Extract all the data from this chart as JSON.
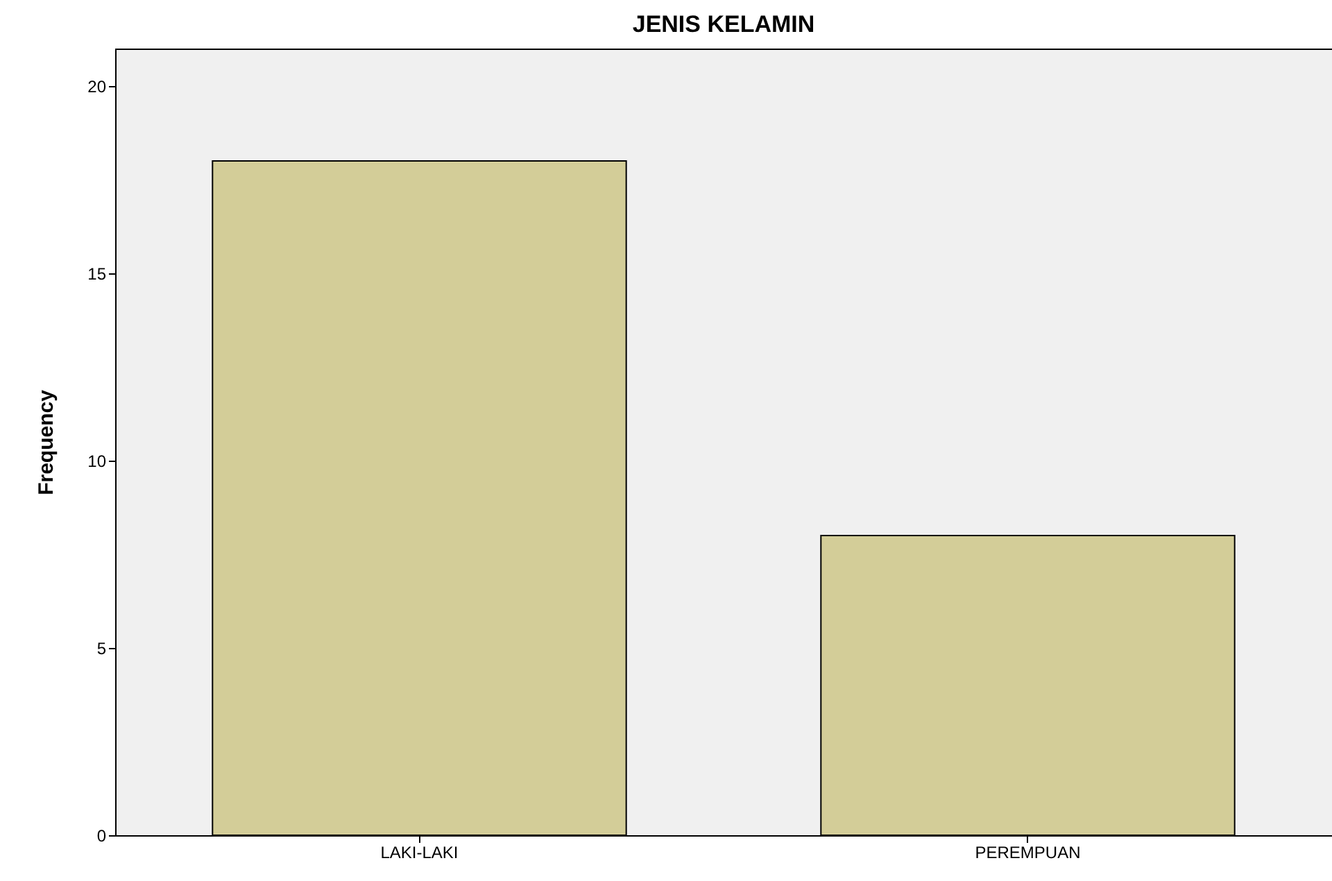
{
  "chart_data": {
    "type": "bar",
    "title": "JENIS KELAMIN",
    "ylabel": "Frequency",
    "categories": [
      "LAKI-LAKI",
      "PEREMPUAN"
    ],
    "values": [
      18,
      8
    ],
    "color": "#d3cd98",
    "ylim": [
      0,
      21
    ],
    "yticks": [
      0,
      5,
      10,
      15,
      20
    ],
    "grid": false
  }
}
